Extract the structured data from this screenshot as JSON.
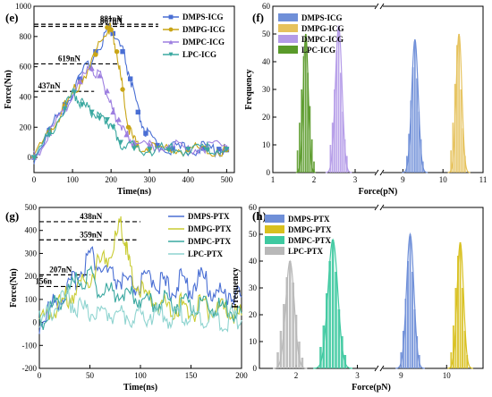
{
  "figure": {
    "panels": [
      {
        "id": "e",
        "letter": "(e)"
      },
      {
        "id": "f",
        "letter": "(f)"
      },
      {
        "id": "g",
        "letter": "(g)"
      },
      {
        "id": "h",
        "letter": "(h)"
      }
    ]
  },
  "chart_data": [
    {
      "panel": "(e)",
      "type": "line",
      "xlabel": "Time(ns)",
      "ylabel": "Force(Nn)",
      "xlim": [
        0,
        520
      ],
      "ylim": [
        -100,
        1000
      ],
      "xticks": [
        0,
        100,
        200,
        300,
        400,
        500
      ],
      "yticks": [
        0,
        200,
        400,
        600,
        800,
        1000
      ],
      "legend_position": "top-right",
      "series": [
        {
          "name": "DMPS-ICG",
          "color": "#4a6fd4",
          "marker": "square",
          "points": [
            [
              0,
              0
            ],
            [
              40,
              180
            ],
            [
              80,
              350
            ],
            [
              120,
              520
            ],
            [
              160,
              700
            ],
            [
              195,
              860
            ],
            [
              205,
              820
            ],
            [
              230,
              700
            ],
            [
              250,
              520
            ],
            [
              270,
              300
            ],
            [
              290,
              160
            ],
            [
              320,
              80
            ],
            [
              360,
              60
            ],
            [
              400,
              55
            ],
            [
              440,
              60
            ],
            [
              480,
              55
            ],
            [
              500,
              50
            ]
          ]
        },
        {
          "name": "DMPG-ICG",
          "color": "#c9a516",
          "marker": "circle",
          "points": [
            [
              0,
              0
            ],
            [
              40,
              170
            ],
            [
              80,
              340
            ],
            [
              120,
              500
            ],
            [
              160,
              680
            ],
            [
              190,
              860
            ],
            [
              200,
              845
            ],
            [
              215,
              700
            ],
            [
              230,
              450
            ],
            [
              245,
              200
            ],
            [
              265,
              80
            ],
            [
              300,
              60
            ],
            [
              350,
              55
            ],
            [
              400,
              50
            ],
            [
              450,
              55
            ],
            [
              500,
              50
            ]
          ]
        },
        {
          "name": "DMPC-ICG",
          "color": "#9d7fe0",
          "marker": "triangle",
          "points": [
            [
              0,
              0
            ],
            [
              40,
              160
            ],
            [
              80,
              330
            ],
            [
              120,
              500
            ],
            [
              150,
              590
            ],
            [
              170,
              540
            ],
            [
              190,
              440
            ],
            [
              205,
              300
            ],
            [
              220,
              250
            ],
            [
              240,
              150
            ],
            [
              260,
              100
            ],
            [
              300,
              80
            ],
            [
              350,
              70
            ],
            [
              400,
              65
            ],
            [
              450,
              70
            ],
            [
              500,
              65
            ]
          ]
        },
        {
          "name": "LPC-ICG",
          "color": "#3aa8a0",
          "marker": "triangle-down",
          "points": [
            [
              0,
              0
            ],
            [
              40,
              150
            ],
            [
              80,
              320
            ],
            [
              105,
              430
            ],
            [
              125,
              350
            ],
            [
              150,
              300
            ],
            [
              170,
              260
            ],
            [
              190,
              250
            ],
            [
              205,
              200
            ],
            [
              225,
              100
            ],
            [
              260,
              60
            ],
            [
              300,
              55
            ],
            [
              350,
              50
            ],
            [
              400,
              55
            ],
            [
              450,
              50
            ],
            [
              500,
              55
            ]
          ]
        }
      ],
      "annotations": [
        {
          "text": "881nN",
          "y": 881
        },
        {
          "text": "867nN",
          "y": 867
        },
        {
          "text": "619nN",
          "y": 619
        },
        {
          "text": "437nN",
          "y": 437
        }
      ]
    },
    {
      "panel": "(f)",
      "type": "bar",
      "xlabel": "Force(pN)",
      "ylabel": "Frequency",
      "xticks": [
        "1",
        "2",
        "3",
        "9",
        "10",
        "11"
      ],
      "yticks": [
        0,
        10,
        20,
        30,
        40,
        50,
        60
      ],
      "ylim": [
        0,
        60
      ],
      "axis_break": true,
      "legend_position": "top-left",
      "series": [
        {
          "name": "DMPS-ICG",
          "color": "#6f8fd8",
          "mean": 9.3,
          "sd": 0.08,
          "peak": 48,
          "x": [
            9.1,
            9.15,
            9.2,
            9.25,
            9.3,
            9.35,
            9.4,
            9.45,
            9.5
          ],
          "values": [
            6,
            14,
            26,
            38,
            48,
            34,
            22,
            12,
            4
          ]
        },
        {
          "name": "DMPG-ICG",
          "color": "#e6c25c",
          "mean": 10.4,
          "sd": 0.07,
          "peak": 50,
          "x": [
            10.2,
            10.25,
            10.3,
            10.35,
            10.4,
            10.45,
            10.5,
            10.55
          ],
          "values": [
            8,
            18,
            32,
            46,
            50,
            30,
            16,
            6
          ]
        },
        {
          "name": "DMPC-ICG",
          "color": "#b49be8",
          "mean": 2.6,
          "sd": 0.08,
          "peak": 53,
          "x": [
            2.4,
            2.45,
            2.5,
            2.55,
            2.6,
            2.65,
            2.7,
            2.75,
            2.8
          ],
          "values": [
            10,
            18,
            30,
            44,
            53,
            36,
            22,
            12,
            6
          ]
        },
        {
          "name": "LPC-ICG",
          "color": "#5a9a2a",
          "mean": 1.8,
          "sd": 0.06,
          "peak": 50,
          "x": [
            1.6,
            1.65,
            1.7,
            1.75,
            1.8,
            1.85,
            1.9,
            1.95,
            2.0
          ],
          "values": [
            8,
            18,
            30,
            42,
            50,
            36,
            24,
            12,
            4
          ]
        }
      ]
    },
    {
      "panel": "(g)",
      "type": "line",
      "xlabel": "Time(ns)",
      "ylabel": "Force(Nn)",
      "xlim": [
        0,
        200
      ],
      "ylim": [
        -200,
        500
      ],
      "xticks": [
        0,
        50,
        100,
        150,
        200
      ],
      "yticks": [
        -200,
        -100,
        0,
        100,
        200,
        300,
        400,
        500
      ],
      "legend_position": "top-right",
      "series": [
        {
          "name": "DMPS-PTX",
          "color": "#4a6fd4",
          "points": [
            [
              0,
              0
            ],
            [
              10,
              60
            ],
            [
              20,
              110
            ],
            [
              30,
              150
            ],
            [
              40,
              220
            ],
            [
              50,
              300
            ],
            [
              60,
              240
            ],
            [
              70,
              200
            ],
            [
              80,
              180
            ],
            [
              90,
              150
            ],
            [
              100,
              160
            ],
            [
              110,
              200
            ],
            [
              120,
              170
            ],
            [
              130,
              140
            ],
            [
              140,
              180
            ],
            [
              150,
              150
            ],
            [
              160,
              200
            ],
            [
              170,
              140
            ],
            [
              180,
              120
            ],
            [
              190,
              130
            ],
            [
              200,
              110
            ]
          ]
        },
        {
          "name": "DMPG-PTX",
          "color": "#c9cc33",
          "points": [
            [
              0,
              0
            ],
            [
              10,
              40
            ],
            [
              20,
              80
            ],
            [
              30,
              120
            ],
            [
              40,
              150
            ],
            [
              50,
              200
            ],
            [
              60,
              260
            ],
            [
              70,
              300
            ],
            [
              80,
              420
            ],
            [
              85,
              350
            ],
            [
              90,
              220
            ],
            [
              100,
              140
            ],
            [
              110,
              100
            ],
            [
              120,
              80
            ],
            [
              130,
              60
            ],
            [
              140,
              80
            ],
            [
              150,
              40
            ],
            [
              160,
              70
            ],
            [
              170,
              50
            ],
            [
              180,
              60
            ],
            [
              190,
              40
            ],
            [
              200,
              30
            ]
          ]
        },
        {
          "name": "DMPC-PTX",
          "color": "#3aa8a0",
          "points": [
            [
              0,
              0
            ],
            [
              10,
              50
            ],
            [
              20,
              100
            ],
            [
              30,
              140
            ],
            [
              40,
              180
            ],
            [
              50,
              200
            ],
            [
              60,
              150
            ],
            [
              70,
              130
            ],
            [
              80,
              140
            ],
            [
              90,
              120
            ],
            [
              100,
              110
            ],
            [
              110,
              90
            ],
            [
              120,
              80
            ],
            [
              130,
              100
            ],
            [
              140,
              70
            ],
            [
              150,
              80
            ],
            [
              160,
              60
            ],
            [
              170,
              70
            ],
            [
              180,
              50
            ],
            [
              190,
              60
            ],
            [
              200,
              40
            ]
          ]
        },
        {
          "name": "LPC-PTX",
          "color": "#8fd4d0",
          "points": [
            [
              0,
              0
            ],
            [
              10,
              40
            ],
            [
              20,
              80
            ],
            [
              30,
              100
            ],
            [
              40,
              60
            ],
            [
              50,
              40
            ],
            [
              60,
              30
            ],
            [
              70,
              50
            ],
            [
              80,
              40
            ],
            [
              90,
              30
            ],
            [
              100,
              20
            ],
            [
              110,
              40
            ],
            [
              120,
              30
            ],
            [
              130,
              20
            ],
            [
              140,
              30
            ],
            [
              150,
              20
            ],
            [
              160,
              30
            ],
            [
              170,
              20
            ],
            [
              180,
              10
            ],
            [
              190,
              20
            ],
            [
              200,
              10
            ]
          ]
        }
      ],
      "annotations": [
        {
          "text": "438nN",
          "y": 438
        },
        {
          "text": "359nN",
          "y": 359
        },
        {
          "text": "207nN",
          "y": 207
        },
        {
          "text": "156n",
          "y": 156
        }
      ]
    },
    {
      "panel": "(h)",
      "type": "bar",
      "xlabel": "Force(pN)",
      "ylabel": "Frequency",
      "xticks": [
        "2",
        "3",
        "9",
        "10"
      ],
      "yticks": [
        0,
        10,
        20,
        30,
        40,
        50,
        60
      ],
      "ylim": [
        0,
        60
      ],
      "axis_break": true,
      "legend_position": "top-left",
      "series": [
        {
          "name": "DMPS-PTX",
          "color": "#6f8fd8",
          "mean": 9.2,
          "sd": 0.08,
          "peak": 50,
          "x": [
            9.0,
            9.05,
            9.1,
            9.15,
            9.2,
            9.25,
            9.3,
            9.35,
            9.4
          ],
          "values": [
            6,
            14,
            26,
            40,
            50,
            36,
            22,
            12,
            5
          ]
        },
        {
          "name": "DMPG-PTX",
          "color": "#d8c01e",
          "mean": 10.3,
          "sd": 0.07,
          "peak": 47,
          "x": [
            10.1,
            10.15,
            10.2,
            10.25,
            10.3,
            10.35,
            10.4,
            10.45
          ],
          "values": [
            6,
            16,
            30,
            42,
            47,
            30,
            14,
            5
          ]
        },
        {
          "name": "DMPC-PTX",
          "color": "#3ec9a0",
          "mean": 2.6,
          "sd": 0.08,
          "peak": 48,
          "x": [
            2.4,
            2.45,
            2.5,
            2.55,
            2.6,
            2.65,
            2.7,
            2.75,
            2.8
          ],
          "values": [
            8,
            16,
            28,
            40,
            48,
            36,
            22,
            12,
            5
          ]
        },
        {
          "name": "LPC-PTX",
          "color": "#b8b8b8",
          "mean": 1.9,
          "sd": 0.07,
          "peak": 40,
          "x": [
            1.7,
            1.75,
            1.8,
            1.85,
            1.9,
            1.95,
            2.0,
            2.05,
            2.1
          ],
          "values": [
            6,
            14,
            24,
            34,
            40,
            32,
            20,
            10,
            4
          ]
        }
      ]
    }
  ]
}
